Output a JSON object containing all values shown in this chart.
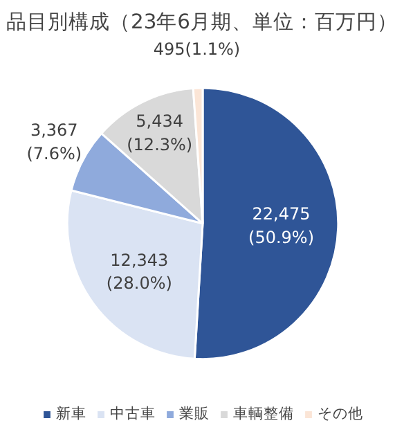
{
  "chart_data": {
    "type": "pie",
    "title": "品目別構成（23年6月期、単位：百万円）",
    "categories": [
      "新車",
      "中古車",
      "業販",
      "車輌整備",
      "その他"
    ],
    "values": [
      22475,
      12343,
      3367,
      5434,
      495
    ],
    "colors": [
      "#2f5597",
      "#dae3f3",
      "#8faadc",
      "#d9d9d9",
      "#fbe5d6"
    ],
    "value_labels": [
      "22,475\n(50.9%)",
      "12,343\n(28.0%)",
      "3,367\n(7.6%)",
      "5,434\n(12.3%)",
      "495(1.1%)"
    ],
    "legend": "bottom"
  }
}
